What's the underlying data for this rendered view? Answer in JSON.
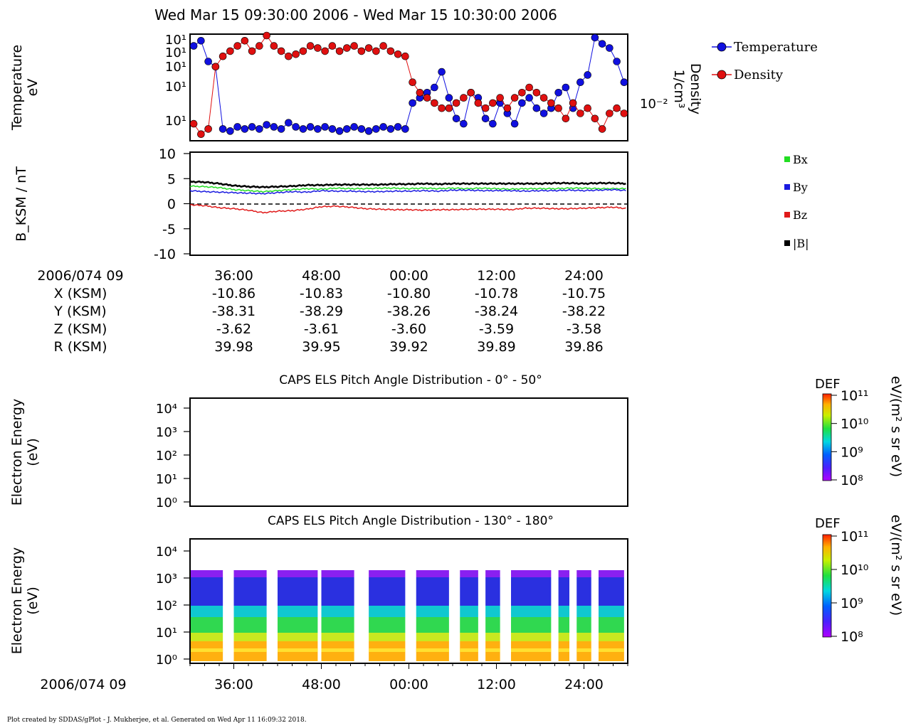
{
  "title": "Wed Mar 15 09:30:00 2006 - Wed Mar 15 10:30:00 2006",
  "footer": "Plot created by SDDAS/gPlot - J. Mukherjee, et al.  Generated on Wed Apr 11 16:09:32 2018.",
  "colors": {
    "temperature": "#1010e0",
    "density": "#e01010",
    "bx": "#22dd22",
    "by": "#1a1ae0",
    "bz": "#e01a1a",
    "bmag": "#000000"
  },
  "chart_data": [
    {
      "type": "line",
      "id": "plasma",
      "ylabel_left": [
        "Temperature",
        "eV"
      ],
      "ylabel_right": [
        "Density",
        "1/cm³"
      ],
      "left_ticks": [
        "10¹",
        "10¹",
        "10¹",
        "10¹",
        "10¹"
      ],
      "right_tick": "10⁻²",
      "legend": [
        "Temperature",
        "Density"
      ],
      "x_unit": "minutes after 09:30",
      "xlim": [
        0,
        60
      ],
      "series": [
        {
          "name": "Temperature",
          "marker": "circle",
          "color": "#1010e0",
          "x": [
            0.5,
            1.5,
            2.5,
            3.5,
            4.5,
            5.5,
            6.5,
            7.5,
            8.5,
            9.5,
            10.5,
            11.5,
            12.5,
            13.5,
            14.5,
            15.5,
            16.5,
            17.5,
            18.5,
            19.5,
            20.5,
            21.5,
            22.5,
            23.5,
            24.5,
            25.5,
            26.5,
            27.5,
            28.5,
            29.5,
            30.5,
            31.5,
            32.5,
            33.5,
            34.5,
            35.5,
            36.5,
            37.5,
            38.5,
            39.5,
            40.5,
            41.5,
            42.5,
            43.5,
            44.5,
            45.5,
            46.5,
            47.5,
            48.5,
            49.5,
            50.5,
            51.5,
            52.5,
            53.5,
            54.5,
            55.5,
            56.5,
            57.5,
            58.5,
            59.5
          ],
          "y": [
            0.9,
            0.95,
            0.75,
            0.7,
            0.1,
            0.08,
            0.12,
            0.1,
            0.12,
            0.1,
            0.14,
            0.12,
            0.1,
            0.16,
            0.12,
            0.1,
            0.12,
            0.1,
            0.12,
            0.1,
            0.08,
            0.1,
            0.12,
            0.1,
            0.08,
            0.1,
            0.12,
            0.1,
            0.12,
            0.1,
            0.35,
            0.4,
            0.45,
            0.5,
            0.65,
            0.4,
            0.2,
            0.15,
            0.45,
            0.4,
            0.2,
            0.15,
            0.35,
            0.25,
            0.15,
            0.35,
            0.4,
            0.3,
            0.25,
            0.3,
            0.45,
            0.5,
            0.3,
            0.55,
            0.62,
            0.98,
            0.92,
            0.88,
            0.75,
            0.55
          ]
        },
        {
          "name": "Density",
          "marker": "circle",
          "color": "#e01010",
          "x": [
            0.5,
            1.5,
            2.5,
            3.5,
            4.5,
            5.5,
            6.5,
            7.5,
            8.5,
            9.5,
            10.5,
            11.5,
            12.5,
            13.5,
            14.5,
            15.5,
            16.5,
            17.5,
            18.5,
            19.5,
            20.5,
            21.5,
            22.5,
            23.5,
            24.5,
            25.5,
            26.5,
            27.5,
            28.5,
            29.5,
            30.5,
            31.5,
            32.5,
            33.5,
            34.5,
            35.5,
            36.5,
            37.5,
            38.5,
            39.5,
            40.5,
            41.5,
            42.5,
            43.5,
            44.5,
            45.5,
            46.5,
            47.5,
            48.5,
            49.5,
            50.5,
            51.5,
            52.5,
            53.5,
            54.5,
            55.5,
            56.5,
            57.5,
            58.5,
            59.5
          ],
          "y": [
            0.15,
            0.05,
            0.1,
            0.7,
            0.8,
            0.85,
            0.9,
            0.95,
            0.85,
            0.9,
            1.0,
            0.9,
            0.85,
            0.8,
            0.82,
            0.85,
            0.9,
            0.88,
            0.85,
            0.9,
            0.85,
            0.88,
            0.9,
            0.85,
            0.88,
            0.85,
            0.9,
            0.85,
            0.82,
            0.8,
            0.55,
            0.45,
            0.4,
            0.35,
            0.3,
            0.3,
            0.35,
            0.4,
            0.45,
            0.35,
            0.3,
            0.35,
            0.4,
            0.3,
            0.4,
            0.45,
            0.5,
            0.45,
            0.4,
            0.35,
            0.3,
            0.2,
            0.35,
            0.25,
            0.3,
            0.2,
            0.1,
            0.25,
            0.3,
            0.25
          ]
        }
      ]
    },
    {
      "type": "line",
      "id": "magnetic",
      "ylabel": "B_KSM / nT",
      "ylim": [
        -10,
        10
      ],
      "yticks": [
        "10",
        "5",
        "0",
        "-5",
        "-10"
      ],
      "legend": [
        "Bx",
        "By",
        "Bz",
        "|B|"
      ],
      "x_unit": "minutes after 09:30",
      "xlim": [
        0,
        60
      ],
      "series": [
        {
          "name": "Bx",
          "color": "#22dd22",
          "x": [
            0,
            2,
            4,
            6,
            8,
            10,
            12,
            14,
            16,
            18,
            20,
            22,
            24,
            26,
            28,
            30,
            32,
            34,
            36,
            38,
            40,
            42,
            44,
            46,
            48,
            50,
            52,
            54,
            56,
            58,
            60
          ],
          "y": [
            3.5,
            3.4,
            3.2,
            2.8,
            2.6,
            2.4,
            2.6,
            2.8,
            3.0,
            2.9,
            3.1,
            3.0,
            3.0,
            3.1,
            3.1,
            3.0,
            3.1,
            3.0,
            3.1,
            3.0,
            3.1,
            3.0,
            2.9,
            3.0,
            3.0,
            3.0,
            3.1,
            3.1,
            3.0,
            3.0,
            3.0
          ]
        },
        {
          "name": "By",
          "color": "#1a1ae0",
          "x": [
            0,
            2,
            4,
            6,
            8,
            10,
            12,
            14,
            16,
            18,
            20,
            22,
            24,
            26,
            28,
            30,
            32,
            34,
            36,
            38,
            40,
            42,
            44,
            46,
            48,
            50,
            52,
            54,
            56,
            58,
            60
          ],
          "y": [
            2.6,
            2.4,
            2.3,
            2.2,
            2.1,
            2.0,
            2.2,
            2.4,
            2.3,
            2.6,
            2.5,
            2.5,
            2.4,
            2.4,
            2.5,
            2.5,
            2.6,
            2.5,
            2.7,
            2.7,
            2.6,
            2.6,
            2.6,
            2.5,
            2.6,
            2.6,
            2.7,
            2.6,
            2.7,
            2.8,
            2.6
          ]
        },
        {
          "name": "Bz",
          "color": "#e01a1a",
          "x": [
            0,
            2,
            4,
            6,
            8,
            10,
            12,
            14,
            16,
            18,
            20,
            22,
            24,
            26,
            28,
            30,
            32,
            34,
            36,
            38,
            40,
            42,
            44,
            46,
            48,
            50,
            52,
            54,
            56,
            58,
            60
          ],
          "y": [
            -0.2,
            -0.4,
            -0.8,
            -1.0,
            -1.3,
            -1.8,
            -1.5,
            -1.4,
            -1.1,
            -0.6,
            -0.5,
            -0.7,
            -1.0,
            -1.1,
            -1.2,
            -1.2,
            -1.3,
            -1.2,
            -1.2,
            -1.1,
            -1.1,
            -1.1,
            -1.2,
            -0.9,
            -0.9,
            -1.0,
            -1.0,
            -0.9,
            -0.8,
            -0.7,
            -1.0
          ]
        },
        {
          "name": "|B|",
          "color": "#000000",
          "x": [
            0,
            2,
            4,
            6,
            8,
            10,
            12,
            14,
            16,
            18,
            20,
            22,
            24,
            26,
            28,
            30,
            32,
            34,
            36,
            38,
            40,
            42,
            44,
            46,
            48,
            50,
            52,
            54,
            56,
            58,
            60
          ],
          "y": [
            4.4,
            4.3,
            4.0,
            3.6,
            3.4,
            3.3,
            3.4,
            3.5,
            3.7,
            3.7,
            3.8,
            3.8,
            3.8,
            3.8,
            3.9,
            3.9,
            4.0,
            3.9,
            4.0,
            4.0,
            4.0,
            4.0,
            4.0,
            4.0,
            4.0,
            4.1,
            4.1,
            4.0,
            4.1,
            4.1,
            4.0
          ]
        }
      ]
    },
    {
      "type": "heatmap",
      "id": "els-0-50",
      "title": "CAPS ELS Pitch Angle Distribution - 0° - 50°",
      "ylabel": [
        "Electron Energy",
        "(eV)"
      ],
      "yticks": [
        "10⁴",
        "10³",
        "10²",
        "10¹",
        "10⁰"
      ],
      "ylim": [
        1,
        20000
      ],
      "colorbar": {
        "label": "DEF",
        "unit": "eV/(m² s sr eV)",
        "ticks": [
          "10¹¹",
          "10¹⁰",
          "10⁹",
          "10⁸"
        ]
      },
      "values": []
    },
    {
      "type": "heatmap",
      "id": "els-130-180",
      "title": "CAPS ELS Pitch Angle Distribution - 130° - 180°",
      "ylabel": [
        "Electron Energy",
        "(eV)"
      ],
      "yticks": [
        "10⁴",
        "10³",
        "10²",
        "10¹",
        "10⁰"
      ],
      "ylim": [
        1,
        20000
      ],
      "colorbar": {
        "label": "DEF",
        "unit": "eV/(m² s sr eV)",
        "ticks": [
          "10¹¹",
          "10¹⁰",
          "10⁹",
          "10⁸"
        ]
      },
      "data_blocks_minutes": [
        [
          0,
          4.5
        ],
        [
          6,
          10.5
        ],
        [
          12,
          17.5
        ],
        [
          18,
          22.5
        ],
        [
          24.5,
          29.5
        ],
        [
          31,
          35.5
        ],
        [
          37,
          39.5
        ],
        [
          40.5,
          42.5
        ],
        [
          44,
          49.5
        ],
        [
          50.5,
          52
        ],
        [
          53,
          55
        ],
        [
          56,
          59.5
        ]
      ]
    }
  ],
  "xaxis": {
    "tick_labels": [
      "36:00",
      "48:00",
      "00:00",
      "12:00",
      "24:00"
    ],
    "tick_minutes": [
      6,
      18,
      30,
      42,
      54
    ],
    "date_label": "2006/074 09"
  },
  "ephemeris": {
    "rows": [
      {
        "label": "X (KSM)",
        "values": [
          "-10.86",
          "-10.83",
          "-10.80",
          "-10.78",
          "-10.75"
        ]
      },
      {
        "label": "Y (KSM)",
        "values": [
          "-38.31",
          "-38.29",
          "-38.26",
          "-38.24",
          "-38.22"
        ]
      },
      {
        "label": "Z (KSM)",
        "values": [
          "-3.62",
          "-3.61",
          "-3.60",
          "-3.59",
          "-3.58"
        ]
      },
      {
        "label": "R (KSM)",
        "values": [
          "39.98",
          "39.95",
          "39.92",
          "39.89",
          "39.86"
        ]
      }
    ]
  }
}
